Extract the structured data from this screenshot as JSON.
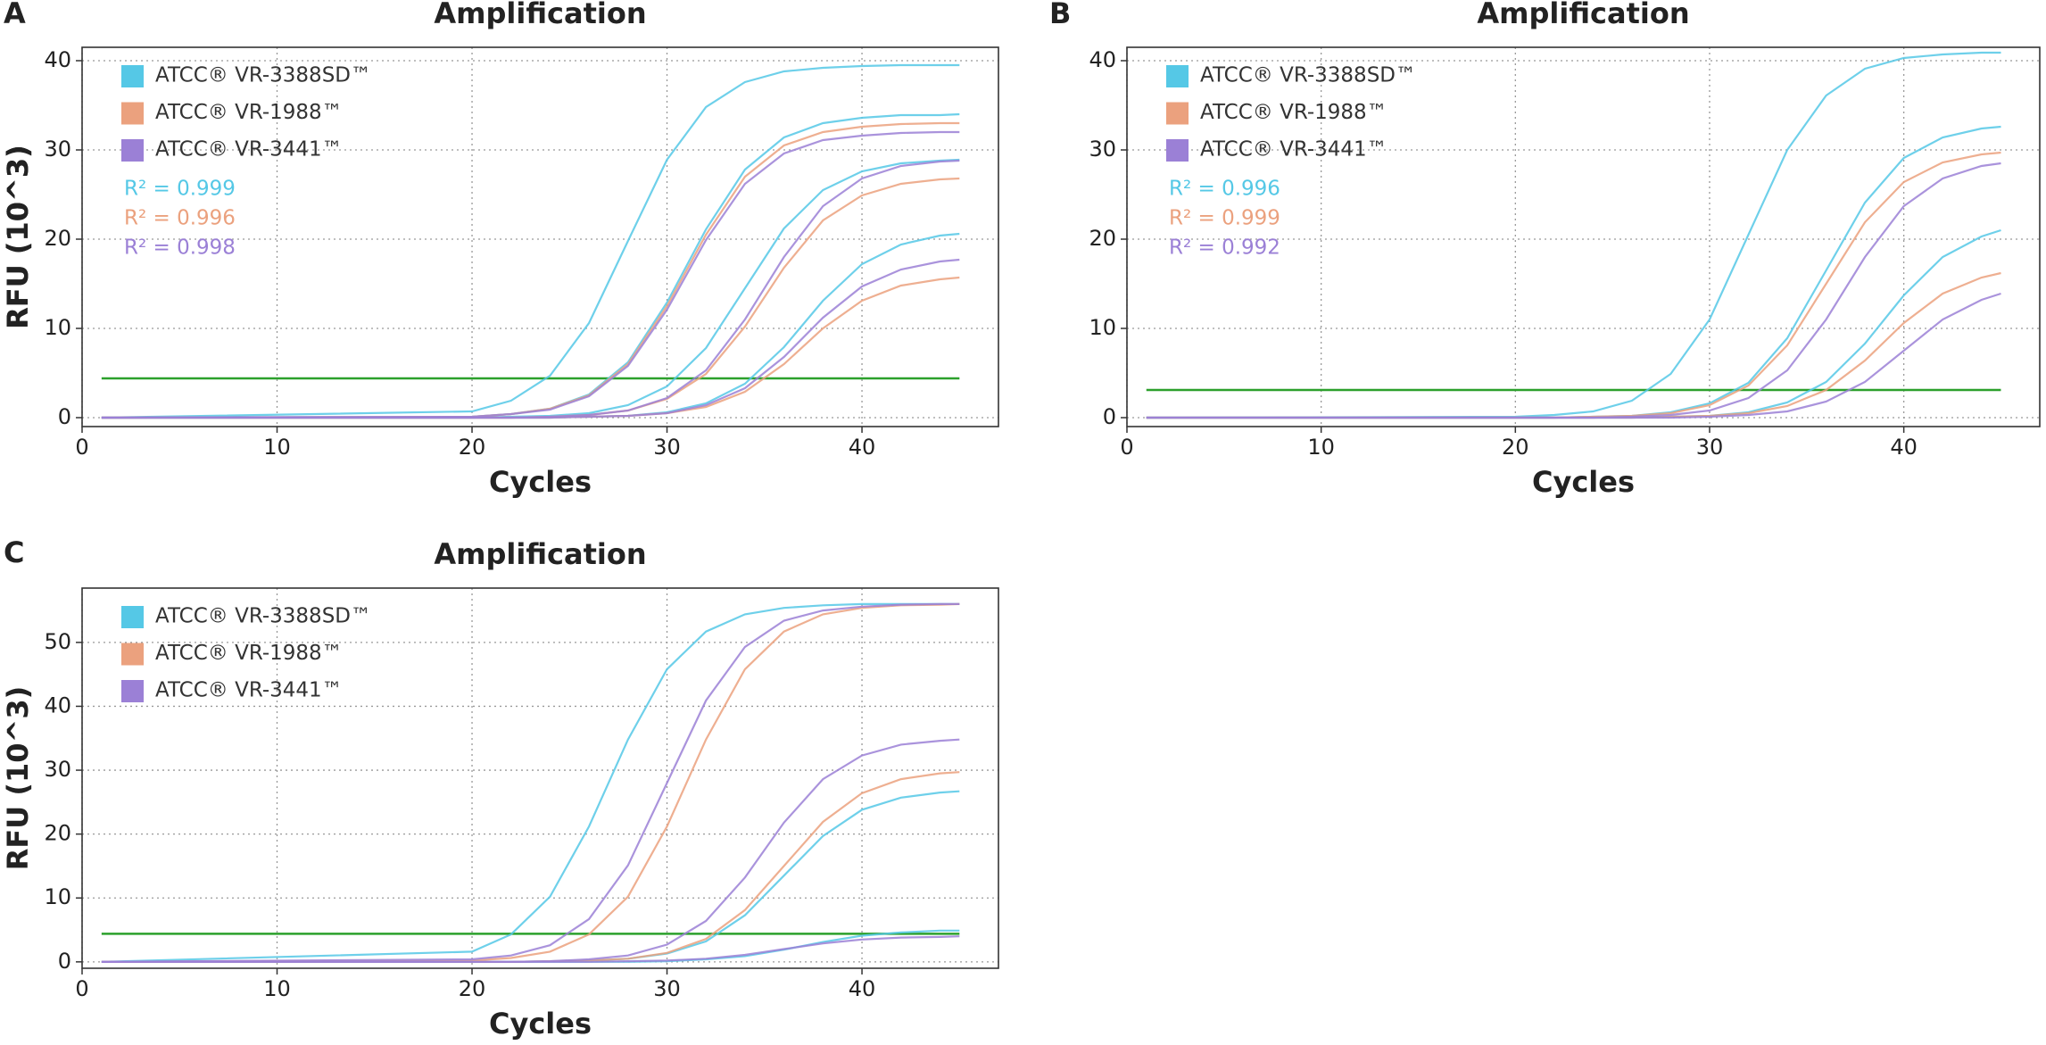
{
  "chart_data": [
    {
      "type": "line",
      "panel": "A",
      "title": "Amplification",
      "x_label": "Cycles",
      "y_label": "RFU (10^3)",
      "x": [
        1,
        20,
        22,
        24,
        26,
        28,
        30,
        32,
        34,
        36,
        38,
        40,
        42,
        44,
        45
      ],
      "xlim": [
        0,
        47
      ],
      "ylim": [
        -1,
        41.5
      ],
      "xticks": [
        0,
        10,
        20,
        30,
        40
      ],
      "yticks": [
        0,
        10,
        20,
        30,
        40
      ],
      "grid": true,
      "threshold": 4.4,
      "threshold_color": "#2ca02c",
      "series": [
        {
          "name": "ATCC® VR-3388SD™",
          "color": "#55c8e6",
          "r2": "R² = 0.999",
          "curves": [
            [
              0,
              0.7,
              1.9,
              4.7,
              10.6,
              19.8,
              28.9,
              34.8,
              37.6,
              38.8,
              39.2,
              39.4,
              39.5,
              39.5,
              39.5
            ],
            [
              0,
              0.1,
              0.4,
              1.0,
              2.6,
              6.2,
              12.9,
              21.1,
              27.8,
              31.4,
              33.0,
              33.6,
              33.9,
              33.9,
              34.0
            ],
            [
              0,
              0,
              0.1,
              0.2,
              0.5,
              1.4,
              3.5,
              7.8,
              14.5,
              21.2,
              25.5,
              27.6,
              28.5,
              28.8,
              28.9
            ],
            [
              0,
              0,
              0,
              0,
              0.1,
              0.2,
              0.6,
              1.6,
              3.8,
              7.9,
              13.1,
              17.2,
              19.4,
              20.4,
              20.6
            ]
          ]
        },
        {
          "name": "ATCC® VR-1988™",
          "color": "#eba17e",
          "r2": "R² = 0.996",
          "curves": [
            [
              0,
              0.1,
              0.4,
              1.0,
              2.5,
              6.0,
              12.5,
              20.5,
              27.0,
              30.5,
              32.0,
              32.6,
              32.9,
              33.0,
              33.0
            ],
            [
              0,
              0,
              0,
              0.1,
              0.3,
              0.8,
              2.1,
              4.9,
              10.2,
              16.8,
              22.1,
              24.9,
              26.2,
              26.7,
              26.8
            ],
            [
              0,
              0,
              0,
              0,
              0.1,
              0.2,
              0.5,
              1.2,
              2.9,
              6.0,
              10.0,
              13.1,
              14.8,
              15.5,
              15.7
            ]
          ]
        },
        {
          "name": "ATCC® VR-3441™",
          "color": "#9b80d6",
          "r2": "R² = 0.998",
          "curves": [
            [
              0,
              0.1,
              0.4,
              0.9,
              2.4,
              5.8,
              12.1,
              19.9,
              26.2,
              29.6,
              31.1,
              31.6,
              31.9,
              32.0,
              32.0
            ],
            [
              0,
              0,
              0,
              0.1,
              0.3,
              0.8,
              2.2,
              5.3,
              11.0,
              18.0,
              23.7,
              26.8,
              28.2,
              28.7,
              28.8
            ],
            [
              0,
              0,
              0,
              0,
              0.1,
              0.2,
              0.5,
              1.4,
              3.3,
              6.8,
              11.2,
              14.7,
              16.6,
              17.5,
              17.7
            ]
          ]
        }
      ]
    },
    {
      "type": "line",
      "panel": "B",
      "title": "Amplification",
      "x_label": "Cycles",
      "y_label": "RFU (10^3)",
      "x": [
        1,
        20,
        22,
        24,
        26,
        28,
        30,
        32,
        34,
        36,
        38,
        40,
        42,
        44,
        45
      ],
      "xlim": [
        0,
        47
      ],
      "ylim": [
        -1,
        41.5
      ],
      "xticks": [
        0,
        10,
        20,
        30,
        40
      ],
      "yticks": [
        0,
        10,
        20,
        30,
        40
      ],
      "grid": true,
      "threshold": 3.1,
      "threshold_color": "#2ca02c",
      "series": [
        {
          "name": "ATCC® VR-3388SD™",
          "color": "#55c8e6",
          "r2": "R² = 0.996",
          "curves": [
            [
              0,
              0.1,
              0.3,
              0.7,
              1.9,
              4.9,
              11.0,
              20.5,
              30.0,
              36.1,
              39.1,
              40.3,
              40.7,
              40.9,
              40.9
            ],
            [
              0,
              0,
              0,
              0.1,
              0.2,
              0.6,
              1.6,
              3.9,
              8.9,
              16.5,
              24.1,
              29.1,
              31.4,
              32.4,
              32.6
            ],
            [
              0,
              0,
              0,
              0,
              0,
              0.1,
              0.2,
              0.6,
              1.7,
              4.0,
              8.3,
              13.7,
              18.0,
              20.3,
              21.0
            ]
          ]
        },
        {
          "name": "ATCC® VR-1988™",
          "color": "#eba17e",
          "r2": "R² = 0.999",
          "curves": [
            [
              0,
              0,
              0,
              0.1,
              0.2,
              0.5,
              1.4,
              3.6,
              8.1,
              15.0,
              21.9,
              26.4,
              28.6,
              29.5,
              29.7
            ],
            [
              0,
              0,
              0,
              0,
              0,
              0.1,
              0.2,
              0.5,
              1.3,
              3.1,
              6.4,
              10.6,
              13.9,
              15.7,
              16.2
            ]
          ]
        },
        {
          "name": "ATCC® VR-3441™",
          "color": "#9b80d6",
          "r2": "R² = 0.992",
          "curves": [
            [
              0,
              0,
              0,
              0,
              0.1,
              0.3,
              0.8,
              2.2,
              5.3,
              11.0,
              18.0,
              23.7,
              26.8,
              28.2,
              28.5
            ],
            [
              0,
              0,
              0,
              0,
              0,
              0,
              0.1,
              0.3,
              0.7,
              1.8,
              4.0,
              7.5,
              11.0,
              13.2,
              13.9
            ]
          ]
        }
      ]
    },
    {
      "type": "line",
      "panel": "C",
      "title": "Amplification",
      "x_label": "Cycles",
      "y_label": "RFU (10^3)",
      "x": [
        1,
        20,
        22,
        24,
        26,
        28,
        30,
        32,
        34,
        36,
        38,
        40,
        42,
        44,
        45
      ],
      "xlim": [
        0,
        47
      ],
      "ylim": [
        -1,
        58.5
      ],
      "xticks": [
        0,
        10,
        20,
        30,
        40
      ],
      "yticks": [
        0,
        10,
        20,
        30,
        40,
        50
      ],
      "grid": true,
      "threshold": 4.4,
      "threshold_color": "#2ca02c",
      "series": [
        {
          "name": "ATCC® VR-3388SD™",
          "color": "#55c8e6",
          "curves": [
            [
              0,
              1.6,
              4.3,
              10.2,
              21.2,
              34.8,
              45.8,
              51.7,
              54.4,
              55.4,
              55.8,
              56.0,
              56.0,
              56.0,
              56.0
            ],
            [
              0,
              0,
              0,
              0.1,
              0.2,
              0.5,
              1.3,
              3.2,
              7.3,
              13.5,
              19.7,
              23.8,
              25.7,
              26.5,
              26.7
            ],
            [
              0,
              0,
              0,
              0,
              0,
              0,
              0.1,
              0.4,
              0.9,
              1.9,
              3.1,
              4.1,
              4.6,
              4.9,
              4.9
            ]
          ]
        },
        {
          "name": "ATCC® VR-1988™",
          "color": "#eba17e",
          "curves": [
            [
              0,
              0.2,
              0.6,
              1.6,
              4.3,
              10.2,
              21.2,
              34.8,
              45.8,
              51.7,
              54.4,
              55.4,
              55.8,
              55.9,
              56.0
            ],
            [
              0,
              0,
              0,
              0.1,
              0.2,
              0.5,
              1.4,
              3.6,
              8.1,
              15.0,
              21.9,
              26.4,
              28.6,
              29.5,
              29.7
            ]
          ]
        },
        {
          "name": "ATCC® VR-3441™",
          "color": "#9b80d6",
          "curves": [
            [
              0,
              0.4,
              1.0,
              2.6,
              6.7,
              15.1,
              28.0,
              40.9,
              49.3,
              53.4,
              55.0,
              55.6,
              55.9,
              56.0,
              56.0
            ],
            [
              0,
              0,
              0,
              0.1,
              0.4,
              1.0,
              2.7,
              6.4,
              13.2,
              21.8,
              28.6,
              32.3,
              34.0,
              34.6,
              34.8
            ],
            [
              0,
              0,
              0,
              0,
              0,
              0.1,
              0.2,
              0.5,
              1.1,
              2.0,
              2.9,
              3.5,
              3.8,
              3.9,
              4.0
            ]
          ]
        }
      ]
    }
  ]
}
